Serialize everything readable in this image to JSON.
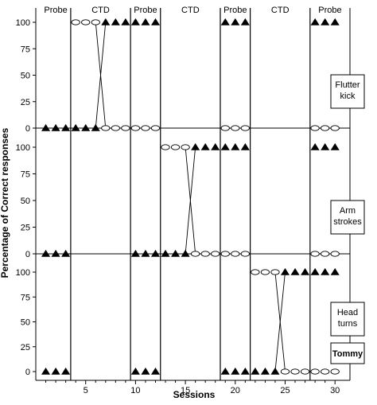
{
  "chart_data": {
    "type": "line",
    "xlabel": "Sessions",
    "ylabel": "Percentage of Correct responses",
    "x_ticks": [
      5,
      10,
      15,
      20,
      25,
      30
    ],
    "y_ticks": [
      0,
      25,
      50,
      75,
      100
    ],
    "ylim": [
      0,
      100
    ],
    "xlim": [
      0,
      31.5
    ],
    "phase_labels": [
      "Probe",
      "CTD",
      "Probe",
      "CTD",
      "Probe",
      "CTD",
      "Probe"
    ],
    "phase_change_after_session": [
      3.5,
      9.5,
      12.5,
      18.5,
      21.5,
      27.5
    ],
    "participant": "Tommy",
    "marker_legend": {
      "triangle": "filled triangle",
      "oval": "open oval"
    },
    "panels": [
      {
        "label": [
          "Flutter",
          "kick"
        ],
        "cross_line": {
          "triangle": [
            6,
            0,
            7,
            100
          ],
          "oval": [
            6,
            100,
            7,
            0
          ]
        },
        "series": [
          {
            "marker": "triangle",
            "points": [
              [
                1,
                0
              ],
              [
                2,
                0
              ],
              [
                3,
                0
              ],
              [
                4,
                0
              ],
              [
                5,
                0
              ],
              [
                6,
                0
              ],
              [
                7,
                100
              ],
              [
                8,
                100
              ],
              [
                9,
                100
              ],
              [
                10,
                100
              ],
              [
                11,
                100
              ],
              [
                12,
                100
              ],
              [
                19,
                100
              ],
              [
                20,
                100
              ],
              [
                21,
                100
              ],
              [
                28,
                100
              ],
              [
                29,
                100
              ],
              [
                30,
                100
              ]
            ]
          },
          {
            "marker": "oval",
            "points": [
              [
                4,
                100
              ],
              [
                5,
                100
              ],
              [
                6,
                100
              ],
              [
                7,
                0
              ],
              [
                8,
                0
              ],
              [
                9,
                0
              ],
              [
                10,
                0
              ],
              [
                11,
                0
              ],
              [
                12,
                0
              ],
              [
                19,
                0
              ],
              [
                20,
                0
              ],
              [
                21,
                0
              ],
              [
                28,
                0
              ],
              [
                29,
                0
              ],
              [
                30,
                0
              ]
            ]
          }
        ]
      },
      {
        "label": [
          "Arm",
          "strokes"
        ],
        "cross_line": {
          "triangle": [
            15,
            0,
            16,
            100
          ],
          "oval": [
            15,
            100,
            16,
            0
          ]
        },
        "series": [
          {
            "marker": "triangle",
            "points": [
              [
                1,
                0
              ],
              [
                2,
                0
              ],
              [
                3,
                0
              ],
              [
                10,
                0
              ],
              [
                11,
                0
              ],
              [
                12,
                0
              ],
              [
                13,
                0
              ],
              [
                14,
                0
              ],
              [
                15,
                0
              ],
              [
                16,
                100
              ],
              [
                17,
                100
              ],
              [
                18,
                100
              ],
              [
                19,
                100
              ],
              [
                20,
                100
              ],
              [
                21,
                100
              ],
              [
                28,
                100
              ],
              [
                29,
                100
              ],
              [
                30,
                100
              ]
            ]
          },
          {
            "marker": "oval",
            "points": [
              [
                13,
                100
              ],
              [
                14,
                100
              ],
              [
                15,
                100
              ],
              [
                16,
                0
              ],
              [
                17,
                0
              ],
              [
                18,
                0
              ],
              [
                19,
                0
              ],
              [
                20,
                0
              ],
              [
                21,
                0
              ],
              [
                28,
                0
              ],
              [
                29,
                0
              ],
              [
                30,
                0
              ]
            ]
          }
        ]
      },
      {
        "label": [
          "Head",
          "turns"
        ],
        "cross_line": {
          "triangle": [
            24,
            0,
            25,
            100
          ],
          "oval": [
            24,
            100,
            25,
            0
          ]
        },
        "series": [
          {
            "marker": "triangle",
            "points": [
              [
                1,
                0
              ],
              [
                2,
                0
              ],
              [
                3,
                0
              ],
              [
                10,
                0
              ],
              [
                11,
                0
              ],
              [
                12,
                0
              ],
              [
                19,
                0
              ],
              [
                20,
                0
              ],
              [
                21,
                0
              ],
              [
                22,
                0
              ],
              [
                23,
                0
              ],
              [
                24,
                0
              ],
              [
                25,
                100
              ],
              [
                26,
                100
              ],
              [
                27,
                100
              ],
              [
                28,
                100
              ],
              [
                29,
                100
              ],
              [
                30,
                100
              ]
            ]
          },
          {
            "marker": "oval",
            "points": [
              [
                22,
                100
              ],
              [
                23,
                100
              ],
              [
                24,
                100
              ],
              [
                25,
                0
              ],
              [
                26,
                0
              ],
              [
                27,
                0
              ],
              [
                28,
                0
              ],
              [
                29,
                0
              ],
              [
                30,
                0
              ]
            ]
          }
        ]
      }
    ]
  }
}
